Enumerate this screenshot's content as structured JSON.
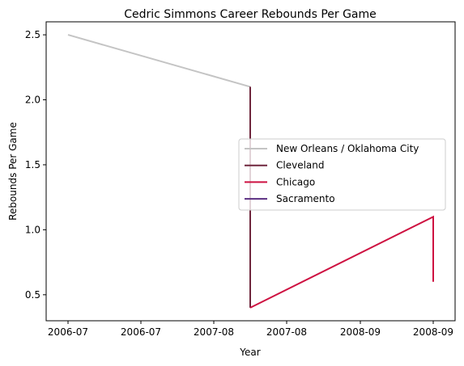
{
  "chart_data": {
    "type": "line",
    "title": "Cedric Simmons Career Rebounds Per Game",
    "xlabel": "Year",
    "ylabel": "Rebounds Per Game",
    "x_tick_labels": [
      "2006-07",
      "2006-07",
      "2007-08",
      "2007-08",
      "2008-09",
      "2008-09"
    ],
    "y_ticks": [
      0.5,
      1.0,
      1.5,
      2.0,
      2.5
    ],
    "y_tick_labels": [
      "0.5",
      "1.0",
      "1.5",
      "2.0",
      "2.5"
    ],
    "ylim": [
      0.3,
      2.6
    ],
    "legend_position": "center-right",
    "series": [
      {
        "name": "New Orleans / Oklahoma City",
        "color": "#c4c4c4",
        "x": [
          "2006-07",
          "2007-08"
        ],
        "y": [
          2.5,
          2.1
        ]
      },
      {
        "name": "Cleveland",
        "color": "#6f263d",
        "x": [
          "2007-08",
          "2007-08"
        ],
        "y": [
          2.1,
          0.4
        ]
      },
      {
        "name": "Chicago",
        "color": "#ce1141",
        "x": [
          "2007-08",
          "2008-09",
          "2008-09"
        ],
        "y": [
          0.4,
          1.1,
          0.6
        ]
      },
      {
        "name": "Sacramento",
        "color": "#5a2d81",
        "x": [],
        "y": []
      }
    ]
  }
}
